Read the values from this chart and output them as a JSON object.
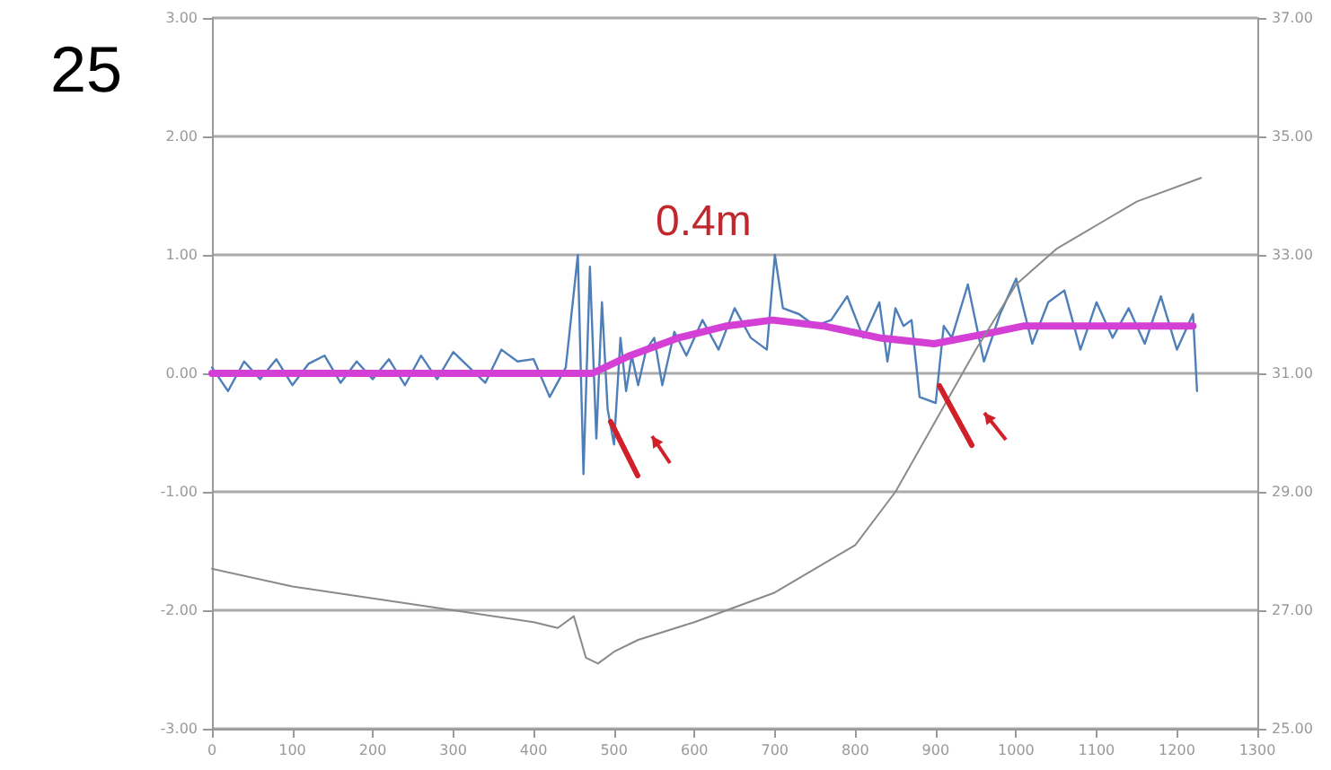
{
  "chart_data": {
    "type": "line",
    "annotations": [
      "25",
      "0.4m"
    ],
    "xlim": [
      0,
      1300
    ],
    "xticks": [
      0,
      100,
      200,
      300,
      400,
      500,
      600,
      700,
      800,
      900,
      1000,
      1100,
      1200,
      1300
    ],
    "ylim": [
      -3,
      3
    ],
    "yticks": [
      {
        "value": -3,
        "label": "-3.00"
      },
      {
        "value": -2,
        "label": "-2.00"
      },
      {
        "value": -1,
        "label": "-1.00"
      },
      {
        "value": 0,
        "label": "0.00"
      },
      {
        "value": 1,
        "label": "1.00"
      },
      {
        "value": 2,
        "label": "2.00"
      },
      {
        "value": 3,
        "label": "3.00"
      }
    ],
    "y2lim": [
      25,
      37
    ],
    "y2ticks": [
      {
        "value": 25,
        "label": "25.00"
      },
      {
        "value": 27,
        "label": "27.00"
      },
      {
        "value": 29,
        "label": "29.00"
      },
      {
        "value": 31,
        "label": "31.00"
      },
      {
        "value": 33,
        "label": "33.00"
      },
      {
        "value": 35,
        "label": "35.00"
      },
      {
        "value": 37,
        "label": "37.00"
      }
    ],
    "grid": "y",
    "marker": "none",
    "series": [
      {
        "color": "#4f7fb8",
        "x": [
          0,
          20,
          40,
          60,
          80,
          100,
          120,
          140,
          160,
          180,
          200,
          220,
          240,
          260,
          280,
          300,
          320,
          340,
          360,
          380,
          400,
          420,
          440,
          455,
          462,
          470,
          478,
          485,
          492,
          500,
          508,
          515,
          522,
          530,
          540,
          550,
          560,
          575,
          590,
          610,
          630,
          650,
          670,
          690,
          700,
          710,
          730,
          750,
          770,
          790,
          810,
          830,
          840,
          850,
          860,
          870,
          880,
          900,
          910,
          920,
          940,
          960,
          980,
          1000,
          1020,
          1040,
          1060,
          1080,
          1100,
          1120,
          1140,
          1160,
          1180,
          1200,
          1220,
          1225
        ],
        "values": [
          0.05,
          -0.15,
          0.1,
          -0.05,
          0.12,
          -0.1,
          0.08,
          0.15,
          -0.08,
          0.1,
          -0.05,
          0.12,
          -0.1,
          0.15,
          -0.05,
          0.18,
          0.05,
          -0.08,
          0.2,
          0.1,
          0.12,
          -0.2,
          0.05,
          1.0,
          -0.85,
          0.9,
          -0.55,
          0.6,
          -0.3,
          -0.6,
          0.3,
          -0.15,
          0.15,
          -0.1,
          0.2,
          0.3,
          -0.1,
          0.35,
          0.15,
          0.45,
          0.2,
          0.55,
          0.3,
          0.2,
          1.0,
          0.55,
          0.5,
          0.4,
          0.45,
          0.65,
          0.3,
          0.6,
          0.1,
          0.55,
          0.4,
          0.45,
          -0.2,
          -0.25,
          0.4,
          0.3,
          0.75,
          0.1,
          0.5,
          0.8,
          0.25,
          0.6,
          0.7,
          0.2,
          0.6,
          0.3,
          0.55,
          0.25,
          0.65,
          0.2,
          0.5,
          -0.15
        ]
      },
      {
        "color": "#d43fd6",
        "x": [
          0,
          100,
          200,
          300,
          400,
          440,
          473,
          520,
          580,
          640,
          697,
          760,
          830,
          898,
          960,
          1010,
          1100,
          1220
        ],
        "values": [
          0.0,
          0.0,
          0.0,
          0.0,
          0.0,
          0.0,
          0.0,
          0.15,
          0.3,
          0.4,
          0.45,
          0.4,
          0.3,
          0.25,
          0.33,
          0.4,
          0.4,
          0.4
        ]
      },
      {
        "color": "#8a8a8a",
        "axis": "y2",
        "x": [
          0,
          100,
          200,
          300,
          400,
          430,
          450,
          465,
          480,
          500,
          530,
          600,
          700,
          800,
          850,
          900,
          950,
          1000,
          1050,
          1100,
          1150,
          1230
        ],
        "values": [
          27.7,
          27.4,
          27.2,
          27.0,
          26.8,
          26.7,
          26.9,
          26.2,
          26.1,
          26.3,
          26.5,
          26.8,
          27.3,
          28.1,
          29.0,
          30.2,
          31.4,
          32.5,
          33.1,
          33.5,
          33.9,
          34.3
        ]
      }
    ]
  }
}
